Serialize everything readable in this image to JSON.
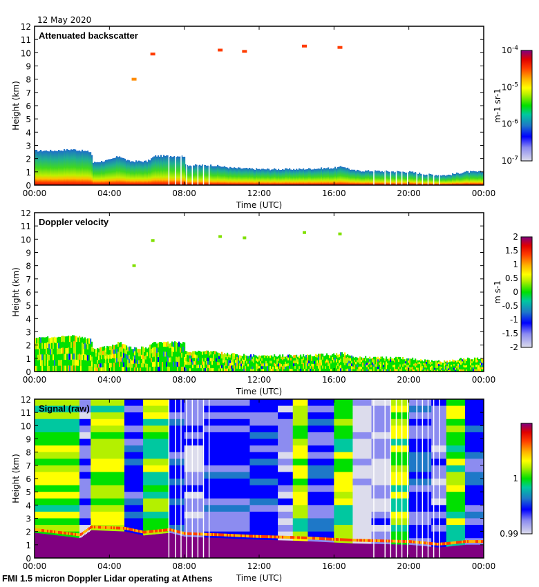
{
  "figure": {
    "date_label": "12 May 2020",
    "footer": "FMI 1.5 micron Doppler Lidar operating at Athens"
  },
  "chart_data": [
    {
      "type": "heatmap",
      "title": "Attenuated backscatter",
      "xlabel": "Time (UTC)",
      "ylabel": "Height (km)",
      "x_ticks": [
        "00:00",
        "04:00",
        "08:00",
        "12:00",
        "16:00",
        "20:00",
        "00:00"
      ],
      "xlim_hours": [
        0,
        24
      ],
      "y_ticks": [
        0,
        1,
        2,
        3,
        4,
        5,
        6,
        7,
        8,
        9,
        10,
        11,
        12
      ],
      "ylim": [
        0,
        12
      ],
      "colorbar": {
        "label": "m-1 sr-1",
        "scale": "log",
        "ticks": [
          "10^-7",
          "10^-6",
          "10^-5",
          "10^-4"
        ],
        "range": [
          1e-07,
          0.0001
        ]
      },
      "boundary_layer_top_km": [
        [
          0,
          2.6
        ],
        [
          1,
          2.6
        ],
        [
          2,
          2.7
        ],
        [
          3,
          2.5
        ],
        [
          3.1,
          1.7
        ],
        [
          4,
          1.9
        ],
        [
          4.5,
          2.2
        ],
        [
          5,
          1.8
        ],
        [
          6,
          1.8
        ],
        [
          6.4,
          2.2
        ],
        [
          8,
          2.2
        ],
        [
          8.05,
          1.5
        ],
        [
          9.5,
          1.5
        ],
        [
          10.5,
          1.3
        ],
        [
          12,
          1.2
        ],
        [
          14,
          1.2
        ],
        [
          16,
          1.3
        ],
        [
          16.5,
          1.4
        ],
        [
          17,
          1.1
        ],
        [
          20,
          1.0
        ],
        [
          21,
          0.8
        ],
        [
          22,
          0.75
        ],
        [
          23,
          1.0
        ],
        [
          24,
          1.0
        ]
      ],
      "cloud_features": [
        {
          "time_h": 6.3,
          "height_km": 9.9,
          "level": "high"
        },
        {
          "time_h": 9.9,
          "height_km": 10.2,
          "level": "high"
        },
        {
          "time_h": 11.2,
          "height_km": 10.1,
          "level": "high"
        },
        {
          "time_h": 14.4,
          "height_km": 10.5,
          "level": "high"
        },
        {
          "time_h": 16.3,
          "height_km": 10.4,
          "level": "high"
        },
        {
          "time_h": 5.3,
          "height_km": 8.0,
          "level": "mid"
        }
      ],
      "gap_times_h": [
        7.15,
        7.5,
        7.8,
        8.1,
        8.4,
        8.7,
        9.0,
        9.3,
        18.1,
        18.7,
        19.0,
        19.3,
        19.6,
        19.9,
        20.4,
        20.7,
        21.0,
        21.3,
        21.6
      ]
    },
    {
      "type": "heatmap",
      "title": "Doppler velocity",
      "xlabel": "Time (UTC)",
      "ylabel": "Height (km)",
      "x_ticks": [
        "00:00",
        "04:00",
        "08:00",
        "12:00",
        "16:00",
        "20:00",
        "00:00"
      ],
      "xlim_hours": [
        0,
        24
      ],
      "y_ticks": [
        0,
        1,
        2,
        3,
        4,
        5,
        6,
        7,
        8,
        9,
        10,
        11,
        12
      ],
      "ylim": [
        0,
        12
      ],
      "colorbar": {
        "label": "m s-1",
        "scale": "linear",
        "ticks": [
          "-2",
          "-1.5",
          "-1",
          "-0.5",
          "0",
          "0.5",
          "1",
          "1.5",
          "2"
        ],
        "range": [
          -2,
          2
        ]
      }
    },
    {
      "type": "heatmap",
      "title": "Signal (raw)",
      "xlabel": "Time (UTC)",
      "ylabel": "Height (km)",
      "x_ticks": [
        "00:00",
        "04:00",
        "08:00",
        "12:00",
        "16:00",
        "20:00",
        "00:00"
      ],
      "xlim_hours": [
        0,
        24
      ],
      "y_ticks": [
        0,
        1,
        2,
        3,
        4,
        5,
        6,
        7,
        8,
        9,
        10,
        11,
        12
      ],
      "ylim": [
        0,
        12
      ],
      "colorbar": {
        "label": "",
        "scale": "linear",
        "ticks": [
          "0.99",
          "1"
        ],
        "range": [
          0.99,
          1.01
        ]
      },
      "column_bands": [
        {
          "start_h": 0,
          "end_h": 2.4,
          "tone": "green"
        },
        {
          "start_h": 2.4,
          "end_h": 3.0,
          "tone": "blue-light"
        },
        {
          "start_h": 3.0,
          "end_h": 4.8,
          "tone": "green"
        },
        {
          "start_h": 4.8,
          "end_h": 5.8,
          "tone": "blue"
        },
        {
          "start_h": 5.8,
          "end_h": 7.2,
          "tone": "green"
        },
        {
          "start_h": 7.2,
          "end_h": 8.0,
          "tone": "blue"
        },
        {
          "start_h": 8.0,
          "end_h": 9.0,
          "tone": "blue-light"
        },
        {
          "start_h": 9.0,
          "end_h": 11.5,
          "tone": "blue"
        },
        {
          "start_h": 11.5,
          "end_h": 13.0,
          "tone": "blue"
        },
        {
          "start_h": 13.0,
          "end_h": 13.8,
          "tone": "blue-light"
        },
        {
          "start_h": 13.8,
          "end_h": 14.6,
          "tone": "green"
        },
        {
          "start_h": 14.6,
          "end_h": 16.0,
          "tone": "blue"
        },
        {
          "start_h": 16.0,
          "end_h": 17.0,
          "tone": "green"
        },
        {
          "start_h": 17.0,
          "end_h": 18.0,
          "tone": "grey"
        },
        {
          "start_h": 18.0,
          "end_h": 19.0,
          "tone": "blue-light"
        },
        {
          "start_h": 19.0,
          "end_h": 20.0,
          "tone": "green"
        },
        {
          "start_h": 20.0,
          "end_h": 21.2,
          "tone": "blue"
        },
        {
          "start_h": 21.2,
          "end_h": 22.0,
          "tone": "blue-light"
        },
        {
          "start_h": 22.0,
          "end_h": 23.0,
          "tone": "green"
        },
        {
          "start_h": 23.0,
          "end_h": 24.0,
          "tone": "blue"
        }
      ],
      "surface_layer_top_km": [
        [
          0,
          1.9
        ],
        [
          2.4,
          1.5
        ],
        [
          3.0,
          2.1
        ],
        [
          4.8,
          2.0
        ],
        [
          5.8,
          1.7
        ],
        [
          7.2,
          1.9
        ],
        [
          8.0,
          1.6
        ],
        [
          10.0,
          1.5
        ],
        [
          11.5,
          1.4
        ],
        [
          14.0,
          1.3
        ],
        [
          17.0,
          1.1
        ],
        [
          20.0,
          1.0
        ],
        [
          21.5,
          0.8
        ],
        [
          22.0,
          0.85
        ],
        [
          23.0,
          1.0
        ],
        [
          24.0,
          1.0
        ]
      ]
    }
  ]
}
